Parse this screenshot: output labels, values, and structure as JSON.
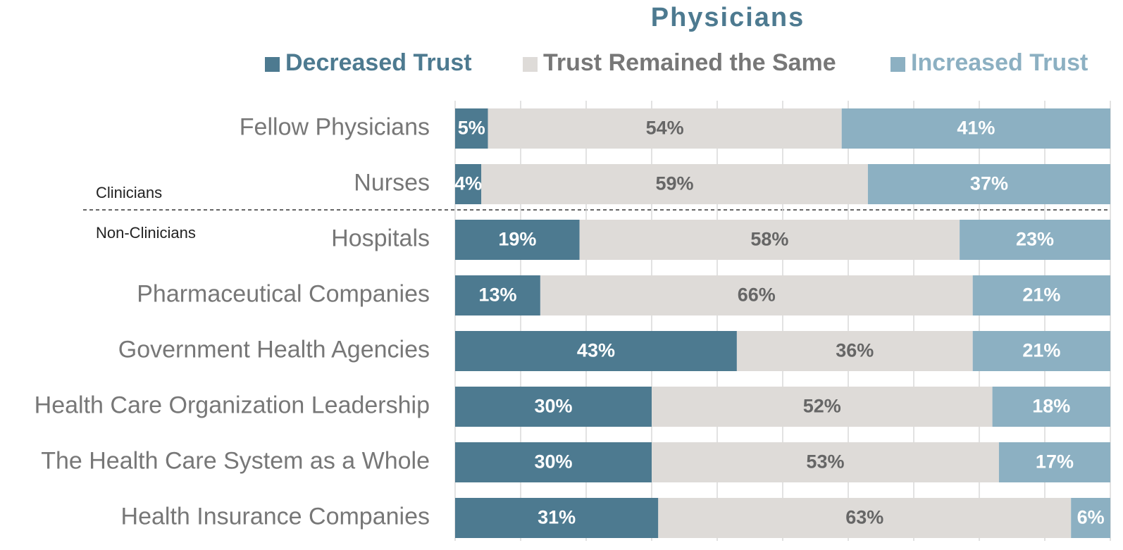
{
  "chart_data": {
    "type": "stacked_bar_horizontal",
    "title": "Physicians",
    "categories": [
      "Fellow Physicians",
      "Nurses",
      "Hospitals",
      "Pharmaceutical Companies",
      "Government Health Agencies",
      "Health Care Organization Leadership",
      "The Health Care System as a Whole",
      "Health Insurance Companies"
    ],
    "series": [
      {
        "name": "Decreased Trust",
        "color": "#4d7a90",
        "label_color": "#ffffff",
        "values": [
          5,
          4,
          19,
          13,
          43,
          30,
          30,
          31
        ],
        "value_labels": [
          "5%",
          "4%",
          "19%",
          "13%",
          "43%",
          "30%",
          "30%",
          "31%"
        ]
      },
      {
        "name": "Trust Remained the Same",
        "color": "#dedbd8",
        "label_color": "#666666",
        "values": [
          54,
          59,
          58,
          66,
          36,
          52,
          53,
          63
        ],
        "value_labels": [
          "54%",
          "59%",
          "58%",
          "66%",
          "36%",
          "52%",
          "53%",
          "63%"
        ]
      },
      {
        "name": "Increased Trust",
        "color": "#8cb0c2",
        "label_color": "#ffffff",
        "values": [
          41,
          37,
          23,
          21,
          21,
          18,
          17,
          6
        ],
        "value_labels": [
          "41%",
          "37%",
          "23%",
          "21%",
          "21%",
          "18%",
          "17%",
          "6%"
        ]
      }
    ],
    "groups": [
      "Clinicians",
      "Non-Clinicians"
    ],
    "xlim": [
      0,
      100
    ],
    "xticks": [
      0,
      10,
      20,
      30,
      40,
      50,
      60,
      70,
      80,
      90,
      100
    ],
    "grid": true,
    "legend": "top"
  }
}
